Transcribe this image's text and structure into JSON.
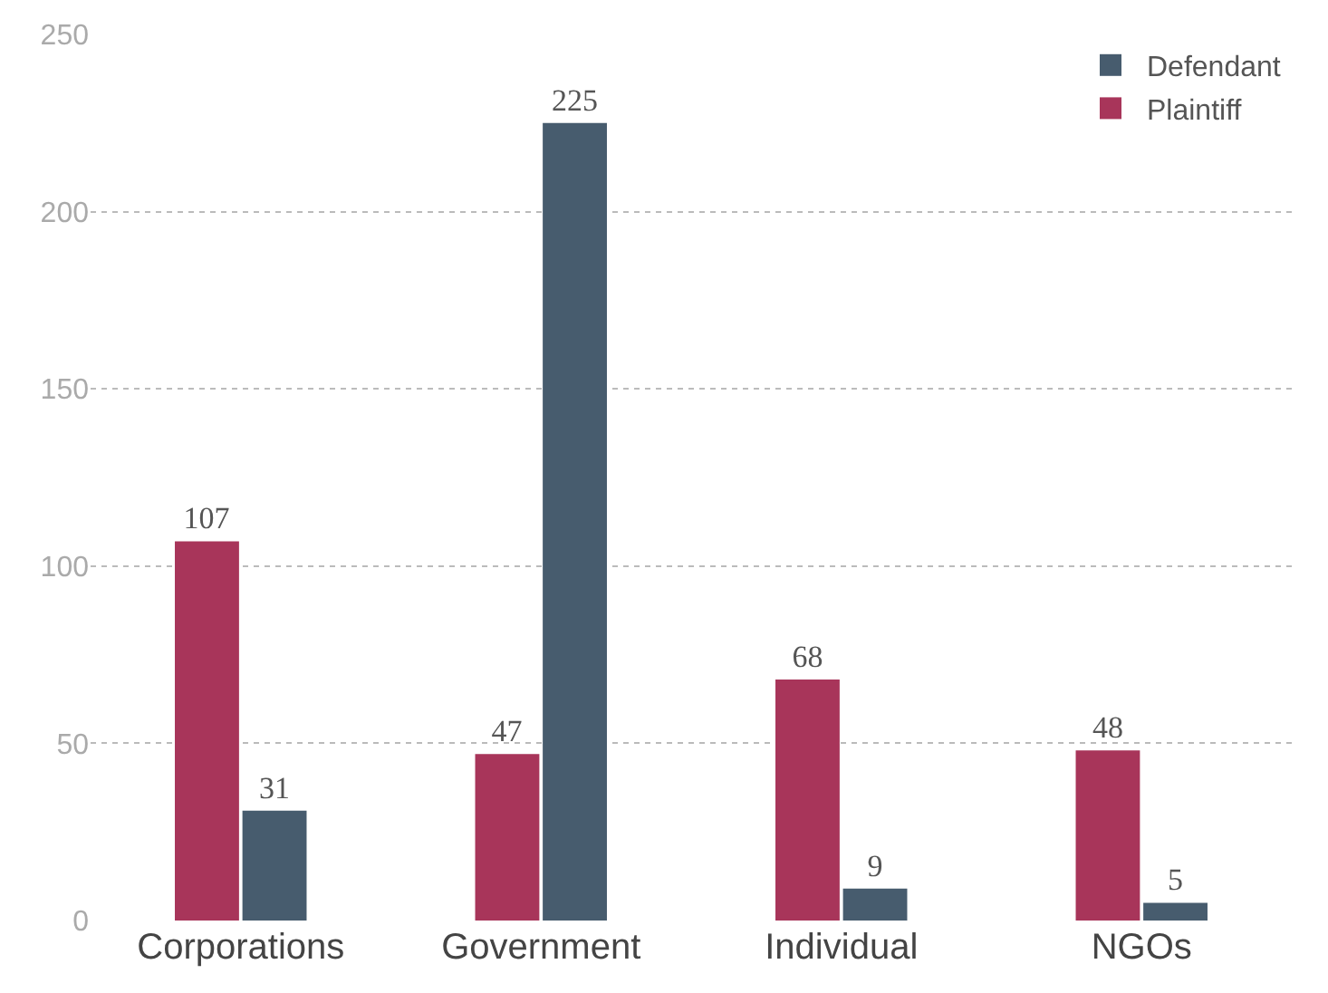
{
  "chart_data": {
    "type": "bar",
    "categories": [
      "Corporations",
      "Government",
      "Individual",
      "NGOs"
    ],
    "series": [
      {
        "name": "Plaintiff",
        "color": "#a8355a",
        "values": [
          107,
          47,
          68,
          48
        ]
      },
      {
        "name": "Defendant",
        "color": "#475c6e",
        "values": [
          31,
          225,
          9,
          5
        ]
      }
    ],
    "ylim": [
      0,
      250
    ],
    "yticks": [
      0,
      50,
      100,
      150,
      200,
      250
    ],
    "grid": "y",
    "legend": "top right",
    "data_labels": true
  }
}
